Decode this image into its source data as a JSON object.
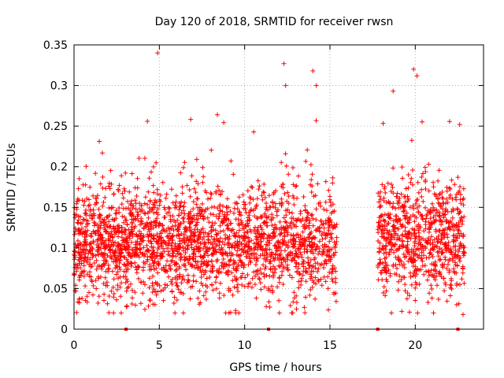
{
  "chart_data": {
    "type": "scatter",
    "title": "Day 120 of 2018, SRMTID for receiver rwsn",
    "xlabel": "GPS time / hours",
    "ylabel": "SRMTID / TECUs",
    "xlim": [
      0,
      24
    ],
    "ylim": [
      0,
      0.35
    ],
    "xticks": [
      0,
      5,
      10,
      15,
      20
    ],
    "yticks": [
      0,
      0.05,
      0.1,
      0.15,
      0.2,
      0.25,
      0.3,
      0.35
    ],
    "xtick_labels": [
      "0",
      "5",
      "10",
      "15",
      "20"
    ],
    "ytick_labels": [
      "0",
      "0.05",
      "0.1",
      "0.15",
      "0.2",
      "0.25",
      "0.3",
      "0.35"
    ],
    "grid": true,
    "marker": "+",
    "color": "#ff0000",
    "series": [
      {
        "name": "SRMTID",
        "segments": [
          {
            "x_start": 0.0,
            "x_end": 15.4,
            "median": 0.105,
            "spread": 0.045,
            "max": 0.34
          },
          {
            "x_start": 17.8,
            "x_end": 22.9,
            "median": 0.11,
            "spread": 0.045,
            "max": 0.32
          }
        ],
        "highlight_points": [
          {
            "x": 4.9,
            "y": 0.34
          },
          {
            "x": 12.3,
            "y": 0.327
          },
          {
            "x": 14.0,
            "y": 0.318
          },
          {
            "x": 19.9,
            "y": 0.32
          },
          {
            "x": 20.1,
            "y": 0.312
          },
          {
            "x": 12.4,
            "y": 0.3
          },
          {
            "x": 14.2,
            "y": 0.3
          },
          {
            "x": 18.7,
            "y": 0.293
          },
          {
            "x": 4.3,
            "y": 0.256
          },
          {
            "x": 8.4,
            "y": 0.264
          },
          {
            "x": 22.6,
            "y": 0.252
          },
          {
            "x": 22.8,
            "y": 0.018
          },
          {
            "x": 0.3,
            "y": 0.037
          },
          {
            "x": 3.4,
            "y": 0.031
          }
        ],
        "zero_points": [
          3.05,
          11.4,
          17.8,
          22.5
        ]
      }
    ]
  }
}
